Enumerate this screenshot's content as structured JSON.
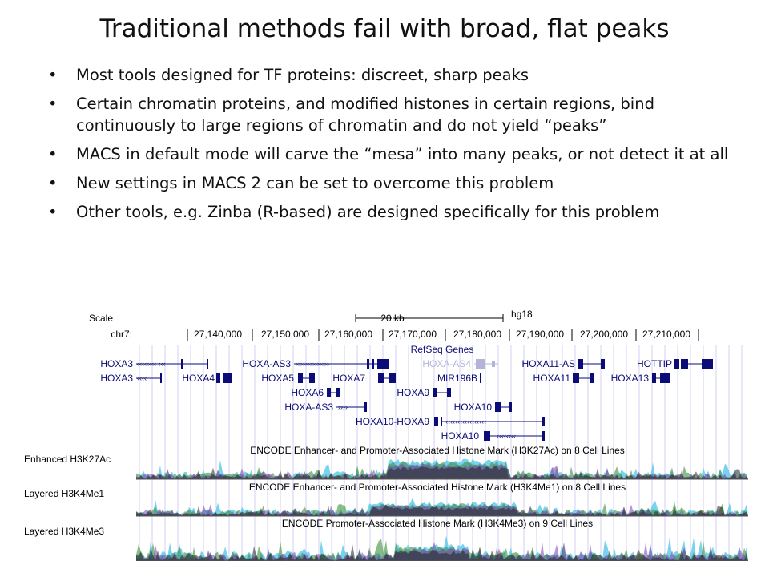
{
  "slide": {
    "title": "Traditional methods fail with broad, flat peaks",
    "bullets": [
      "Most tools designed for TF proteins: discreet, sharp peaks",
      "Certain chromatin proteins, and modified histones in certain regions, bind continuously to large regions of chromatin and do not yield “peaks”",
      "MACS in default mode will carve the “mesa” into many peaks, or not detect it at all",
      "New settings in MACS 2 can be set to overcome this problem",
      "Other tools, e.g. Zinba (R-based) are designed specifically for this problem"
    ]
  },
  "browser": {
    "scale_label": "Scale",
    "scale_value": "20 kb",
    "assembly": "hg18",
    "chrom_label": "chr7:",
    "coords": [
      "27,140,000",
      "27,150,000",
      "27,160,000",
      "27,170,000",
      "27,180,000",
      "27,190,000",
      "27,200,000",
      "27,210,000"
    ],
    "refseq_title": "RefSeq Genes",
    "genes": {
      "row1": [
        "HOXA3",
        "HOXA-AS3",
        "HOXA-AS4",
        "HOXA11-AS",
        "HOTTIP"
      ],
      "row2": [
        "HOXA3",
        "HOXA4",
        "HOXA5",
        "HOXA7",
        "MIR196B",
        "HOXA11",
        "HOXA13"
      ],
      "row3": [
        "HOXA6",
        "HOXA9"
      ],
      "row4": [
        "HOXA-AS3",
        "HOXA10"
      ],
      "row5": [
        "HOXA10-HOXA9"
      ],
      "row6": [
        "HOXA10"
      ]
    },
    "tracks": [
      {
        "label": "Enhanced H3K27Ac",
        "title": "ENCODE Enhancer- and Promoter-Associated Histone Mark (H3K27Ac) on 8 Cell Lines"
      },
      {
        "label": "Layered H3K4Me1",
        "title": "ENCODE Enhancer- and Promoter-Associated Histone Mark (H3K4Me1) on 8 Cell Lines"
      },
      {
        "label": "Layered H3K4Me3",
        "title": "ENCODE Promoter-Associated Histone Mark (H3K4Me3) on 9 Cell Lines"
      }
    ],
    "colors": {
      "gene": "#0c0c78",
      "gene_gray": "#b4b4d8",
      "grid": "#d0d0f0"
    }
  }
}
